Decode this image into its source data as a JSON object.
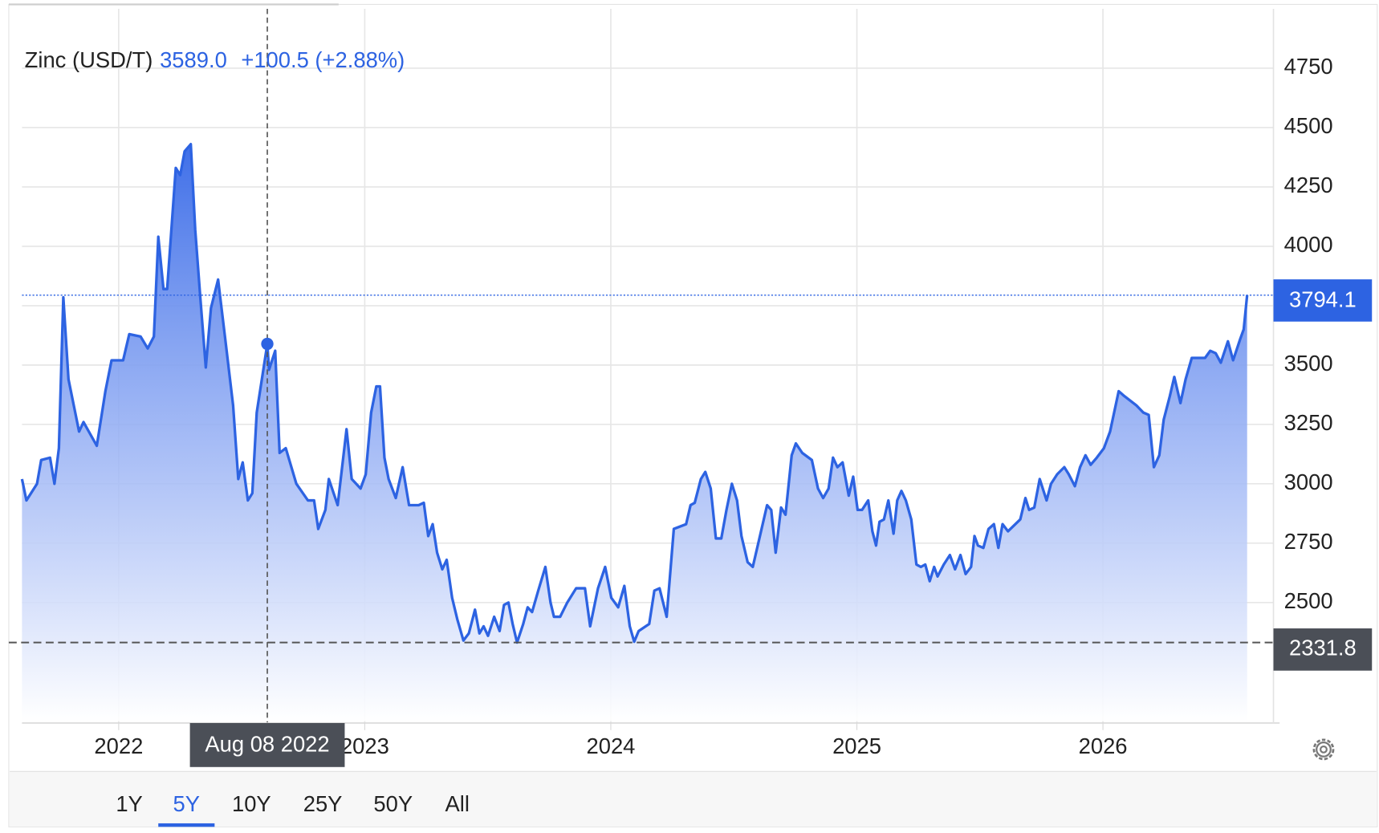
{
  "header": {
    "name": "Zinc (USD/T)",
    "price": "3589.0",
    "change": "+100.5 (+2.88%)"
  },
  "chart_data": {
    "type": "area",
    "color": "#2d63e2",
    "x": [
      2021.607,
      2021.625,
      2021.668,
      2021.685,
      2021.721,
      2021.739,
      2021.757,
      2021.775,
      2021.796,
      2021.839,
      2021.857,
      2021.911,
      2021.946,
      2021.971,
      2022.018,
      2022.043,
      2022.089,
      2022.118,
      2022.143,
      2022.161,
      2022.182,
      2022.197,
      2022.232,
      2022.25,
      2022.268,
      2022.293,
      2022.311,
      2022.332,
      2022.354,
      2022.375,
      2022.404,
      2022.433,
      2022.465,
      2022.486,
      2022.504,
      2022.525,
      2022.543,
      2022.561,
      2022.604,
      2022.611,
      2022.636,
      2022.654,
      2022.679,
      2022.722,
      2022.769,
      2022.794,
      2022.811,
      2022.84,
      2022.854,
      2022.89,
      2022.926,
      2022.947,
      2022.983,
      2023.004,
      2023.026,
      2023.047,
      2023.062,
      2023.08,
      2023.097,
      2023.126,
      2023.154,
      2023.18,
      2023.219,
      2023.24,
      2023.258,
      2023.276,
      2023.294,
      2023.315,
      2023.333,
      2023.355,
      2023.376,
      2023.401,
      2023.423,
      2023.448,
      2023.466,
      2023.483,
      2023.501,
      2023.526,
      2023.548,
      2023.566,
      2023.584,
      2023.601,
      2023.619,
      2023.644,
      2023.662,
      2023.68,
      2023.705,
      2023.734,
      2023.755,
      2023.769,
      2023.794,
      2023.823,
      2023.859,
      2023.895,
      2023.916,
      2023.948,
      2023.977,
      2024.002,
      2024.03,
      2024.055,
      2024.077,
      2024.095,
      2024.113,
      2024.156,
      2024.177,
      2024.198,
      2024.227,
      2024.256,
      2024.306,
      2024.324,
      2024.341,
      2024.366,
      2024.384,
      2024.406,
      2024.427,
      2024.449,
      2024.47,
      2024.492,
      2024.513,
      2024.531,
      2024.556,
      2024.577,
      2024.606,
      2024.635,
      2024.652,
      2024.67,
      2024.692,
      2024.71,
      2024.735,
      2024.752,
      2024.778,
      2024.817,
      2024.842,
      2024.863,
      2024.885,
      2024.903,
      2024.921,
      2024.942,
      2024.967,
      2024.985,
      2025.003,
      2025.021,
      2025.046,
      2025.063,
      2025.078,
      2025.092,
      2025.11,
      2025.128,
      2025.149,
      2025.164,
      2025.181,
      2025.199,
      2025.221,
      2025.242,
      2025.26,
      2025.278,
      2025.296,
      2025.314,
      2025.328,
      2025.353,
      2025.378,
      2025.399,
      2025.421,
      2025.442,
      2025.464,
      2025.478,
      2025.492,
      2025.514,
      2025.535,
      2025.557,
      2025.575,
      2025.592,
      2025.614,
      2025.664,
      2025.685,
      2025.7,
      2025.721,
      2025.743,
      2025.771,
      2025.789,
      2025.814,
      2025.843,
      2025.861,
      2025.886,
      2025.907,
      2025.929,
      2025.95,
      2025.975,
      2026.004,
      2026.029,
      2026.064,
      2026.086,
      2026.136,
      2026.164,
      2026.186,
      2026.207,
      2026.229,
      2026.247,
      2026.272,
      2026.29,
      2026.315,
      2026.336,
      2026.361,
      2026.415,
      2026.436,
      2026.458,
      2026.479,
      2026.508,
      2026.529,
      2026.558,
      2026.572,
      2026.586
    ],
    "values": [
      3020,
      2930,
      3000,
      3100,
      3110,
      3000,
      3150,
      3785,
      3440,
      3220,
      3260,
      3160,
      3390,
      3520,
      3520,
      3630,
      3620,
      3570,
      3620,
      4040,
      3820,
      3820,
      4330,
      4300,
      4400,
      4430,
      4070,
      3780,
      3490,
      3740,
      3860,
      3610,
      3330,
      3020,
      3090,
      2930,
      2960,
      3300,
      3589,
      3480,
      3560,
      3130,
      3150,
      3000,
      2930,
      2930,
      2810,
      2890,
      3020,
      2910,
      3230,
      3020,
      2980,
      3040,
      3300,
      3410,
      3410,
      3110,
      3020,
      2940,
      3070,
      2910,
      2910,
      2920,
      2780,
      2830,
      2710,
      2640,
      2680,
      2520,
      2430,
      2340,
      2370,
      2470,
      2370,
      2400,
      2360,
      2440,
      2380,
      2490,
      2500,
      2410,
      2331.8,
      2410,
      2480,
      2460,
      2550,
      2650,
      2500,
      2440,
      2440,
      2500,
      2560,
      2560,
      2400,
      2560,
      2650,
      2520,
      2480,
      2570,
      2400,
      2335,
      2380,
      2410,
      2550,
      2560,
      2440,
      2810,
      2830,
      2910,
      2920,
      3020,
      3050,
      2980,
      2770,
      2770,
      2890,
      3000,
      2930,
      2780,
      2670,
      2650,
      2780,
      2910,
      2890,
      2710,
      2900,
      2870,
      3120,
      3170,
      3130,
      3100,
      2980,
      2940,
      2980,
      3110,
      3070,
      3090,
      2950,
      3030,
      2890,
      2890,
      2930,
      2800,
      2740,
      2840,
      2850,
      2930,
      2790,
      2930,
      2970,
      2930,
      2850,
      2660,
      2650,
      2660,
      2590,
      2650,
      2610,
      2660,
      2700,
      2640,
      2700,
      2620,
      2650,
      2780,
      2740,
      2730,
      2810,
      2830,
      2730,
      2830,
      2800,
      2850,
      2940,
      2890,
      2900,
      3020,
      2930,
      3000,
      3040,
      3070,
      3040,
      2990,
      3070,
      3120,
      3080,
      3110,
      3150,
      3220,
      3390,
      3370,
      3330,
      3300,
      3290,
      3070,
      3120,
      3270,
      3370,
      3450,
      3340,
      3440,
      3530,
      3530,
      3560,
      3550,
      3510,
      3600,
      3520,
      3610,
      3650,
      3794.1
    ],
    "xlim": [
      2021.607,
      2026.693
    ],
    "ylim": [
      2000,
      5000
    ],
    "xticks": [
      2022,
      2023,
      2024,
      2025,
      2026
    ],
    "yticks": [
      2500,
      2750,
      3000,
      3250,
      3500,
      3750,
      4000,
      4250,
      4500,
      4750
    ],
    "grid": true,
    "last_marker": 3794.1,
    "low_marker": 2331.8,
    "crosshair": {
      "x": 2022.604,
      "label": "Aug 08 2022"
    }
  },
  "range_buttons": [
    "1Y",
    "5Y",
    "10Y",
    "25Y",
    "50Y",
    "All"
  ],
  "active_range": 1
}
